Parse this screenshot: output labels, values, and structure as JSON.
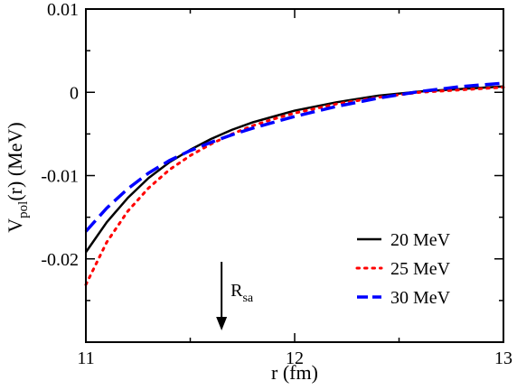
{
  "chart_data": {
    "type": "line",
    "xlabel": "r (fm)",
    "ylabel_main": "V",
    "ylabel_sub": "pol",
    "ylabel_rest": "(r) (MeV)",
    "xlim": [
      11,
      13
    ],
    "ylim": [
      -0.03,
      0.01
    ],
    "xticks": [
      11,
      12,
      13
    ],
    "xtick_labels": [
      "11",
      "12",
      "13"
    ],
    "yticks": [
      0.01,
      0,
      -0.01,
      -0.02
    ],
    "ytick_labels": [
      "0.01",
      "0",
      "-0.01",
      "-0.02"
    ],
    "grid": false,
    "legend_position": "lower-right",
    "annotation": {
      "main": "R",
      "sub": "sa",
      "x": 11.65
    },
    "series": [
      {
        "name": "20 MeV",
        "color": "#000000",
        "style": "solid",
        "x": [
          11.0,
          11.1,
          11.2,
          11.3,
          11.4,
          11.5,
          11.6,
          11.7,
          11.8,
          11.9,
          12.0,
          12.2,
          12.4,
          12.6,
          12.8,
          13.0
        ],
        "y": [
          -0.0192,
          -0.0156,
          -0.0127,
          -0.0103,
          -0.0084,
          -0.0069,
          -0.0056,
          -0.0045,
          -0.0036,
          -0.0029,
          -0.0022,
          -0.0012,
          -0.0004,
          0.0001,
          0.0004,
          0.0007
        ]
      },
      {
        "name": "25 MeV",
        "color": "#ff0000",
        "style": "dotted",
        "x": [
          11.0,
          11.1,
          11.2,
          11.3,
          11.4,
          11.5,
          11.6,
          11.7,
          11.8,
          11.9,
          12.0,
          12.2,
          12.4,
          12.6,
          12.8,
          13.0
        ],
        "y": [
          -0.0231,
          -0.018,
          -0.0143,
          -0.0115,
          -0.0093,
          -0.0076,
          -0.0062,
          -0.005,
          -0.004,
          -0.0032,
          -0.0025,
          -0.0014,
          -0.0006,
          0.0,
          0.0003,
          0.0006
        ]
      },
      {
        "name": "30 MeV",
        "color": "#0000ff",
        "style": "dashed",
        "x": [
          11.0,
          11.1,
          11.2,
          11.3,
          11.4,
          11.5,
          11.6,
          11.7,
          11.8,
          11.9,
          12.0,
          12.2,
          12.4,
          12.6,
          12.8,
          13.0
        ],
        "y": [
          -0.0167,
          -0.0139,
          -0.0116,
          -0.0097,
          -0.0082,
          -0.007,
          -0.006,
          -0.0051,
          -0.0043,
          -0.0036,
          -0.0029,
          -0.0017,
          -0.0007,
          0.0001,
          0.0007,
          0.0011
        ]
      }
    ]
  }
}
